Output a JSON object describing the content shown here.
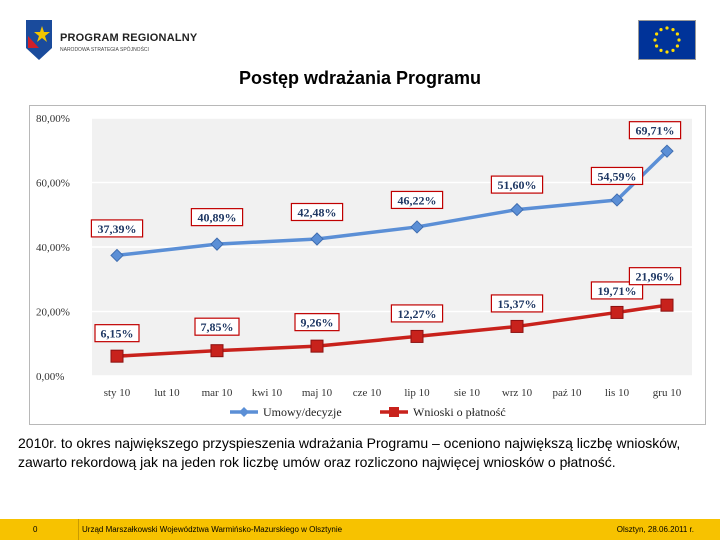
{
  "header": {
    "logo_title": "PROGRAM REGIONALNY",
    "logo_subtitle": "NARODOWA STRATEGIA SPÓJNOŚCI",
    "page_title": "Postęp wdrażania Programu"
  },
  "colors": {
    "series1": "#5b8fd6",
    "series2": "#c8221c",
    "label_border": "#c00000",
    "footer": "#f7c200",
    "flag": "#003399",
    "star": "#ffdd00"
  },
  "chart_data": {
    "type": "line",
    "title": "",
    "xlabel": "",
    "ylabel": "",
    "ylim": [
      0,
      80
    ],
    "y_ticks": [
      "0,00%",
      "20,00%",
      "40,00%",
      "60,00%",
      "80,00%"
    ],
    "categories": [
      "sty 10",
      "lut 10",
      "mar 10",
      "kwi 10",
      "maj 10",
      "cze 10",
      "lip 10",
      "sie 10",
      "wrz 10",
      "paź 10",
      "lis 10",
      "gru 10"
    ],
    "series": [
      {
        "name": "Umowy/decyzje",
        "values": [
          37.39,
          null,
          40.89,
          null,
          42.48,
          null,
          46.22,
          null,
          51.6,
          null,
          54.59,
          69.71
        ],
        "labels": [
          "37,39%",
          null,
          "40,89%",
          null,
          "42,48%",
          null,
          "46,22%",
          null,
          "51,60%",
          null,
          "54,59%",
          "69,71%"
        ]
      },
      {
        "name": "Wnioski o płatność",
        "values": [
          6.15,
          null,
          7.85,
          null,
          9.26,
          null,
          12.27,
          null,
          15.37,
          null,
          19.71,
          21.96
        ],
        "labels": [
          "6,15%",
          null,
          "7,85%",
          null,
          "9,26%",
          null,
          "12,27%",
          null,
          "15,37%",
          null,
          "19,71%",
          "21,96%"
        ]
      }
    ],
    "legend_position": "bottom"
  },
  "description": "2010r. to okres największego przyspieszenia wdrażania Programu – oceniono największą liczbę wniosków, zawarto rekordową jak na jeden rok liczbę umów oraz rozliczono najwięcej wniosków o płatność.",
  "footer": {
    "page_number": "0",
    "organization": "Urząd Marszałkowski Województwa Warmińsko-Mazurskiego w Olsztynie",
    "date": "Olsztyn, 28.06.2011 r."
  }
}
